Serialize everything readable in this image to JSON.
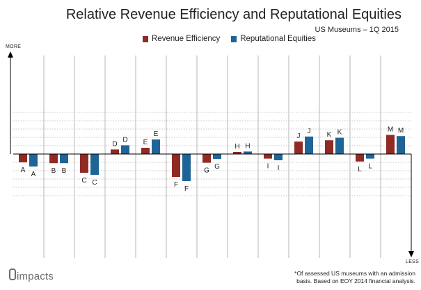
{
  "header": {
    "title": "Relative Revenue Efficiency and Reputational Equities",
    "subtitle": "US Museums – 1Q 2015"
  },
  "axis": {
    "top_label": "MORE",
    "bottom_label": "LESS"
  },
  "footer": {
    "logo_text": "impacts",
    "footnote": "*Of assessed US museums with an admission basis. Based on EOY 2014 financial analysis."
  },
  "colors": {
    "revenue": "#8f2a25",
    "reputation": "#1f6497",
    "grid": "#b4b4b4",
    "axis": "#000000"
  },
  "chart_data": {
    "type": "bar",
    "title": "Relative Revenue Efficiency and Reputational Equities",
    "subtitle": "US Museums – 1Q 2015",
    "categories": [
      "A",
      "B",
      "C",
      "D",
      "E",
      "F",
      "G",
      "H",
      "I",
      "J",
      "K",
      "L",
      "M"
    ],
    "series": [
      {
        "name": "Revenue Efficiency",
        "values": [
          -2.0,
          -2.2,
          -4.5,
          1.1,
          1.5,
          -5.5,
          -2.1,
          0.5,
          -1.1,
          3.0,
          3.3,
          -1.8,
          4.6
        ]
      },
      {
        "name": "Reputational Equities",
        "values": [
          -3.0,
          -2.2,
          -5.0,
          2.1,
          3.5,
          -6.5,
          -1.2,
          0.6,
          -1.5,
          4.2,
          3.9,
          -1.1,
          4.3
        ]
      }
    ],
    "ylim": [
      -10,
      10
    ],
    "grid": true,
    "legend_position": "top-center",
    "yaxis_top_label": "MORE",
    "yaxis_bottom_label": "LESS"
  }
}
